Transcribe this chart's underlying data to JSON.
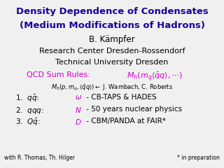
{
  "background_color": "#f0f0f0",
  "title_line1": "Density Dependence of Condensates",
  "title_line2": "(Medium Modifications of Hadrons)",
  "title_color": "#1a0099",
  "author": "B. Kämpfer",
  "institute1": "Research Center Dresden-Rossendorf",
  "institute2": "Technical University Dresden",
  "qcd_label": "QCD Sum Rules:  ",
  "qcd_color": "#cc00cc",
  "footer_left": "with R. Thomas, Th. Hilger",
  "footer_right": "* in preparation",
  "text_color": "#000000",
  "magenta_color": "#cc00cc",
  "dark_blue": "#1a0099"
}
